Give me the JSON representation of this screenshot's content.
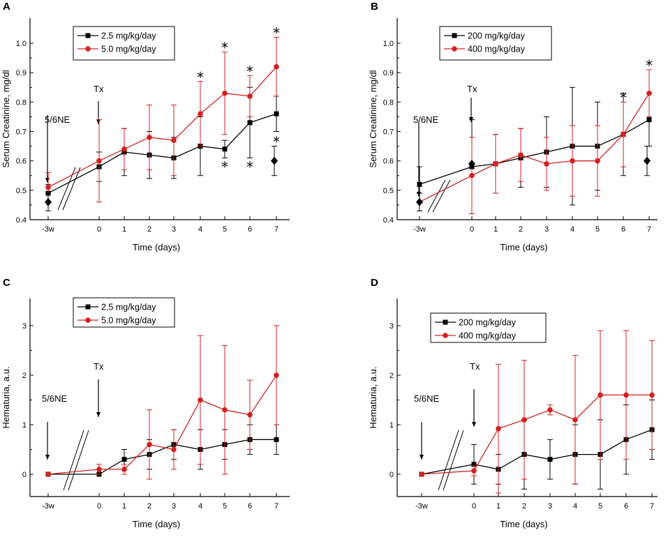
{
  "chart_data": [
    {
      "panel": "A",
      "type": "line",
      "xlabel": "Time (days)",
      "ylabel": "Serum Creatinine, mg/dl",
      "ylim": [
        0.4,
        1.05
      ],
      "yticks": [
        "0.4",
        "0.5",
        "0.6",
        "0.7",
        "0.8",
        "0.9",
        "1.0"
      ],
      "xticks": [
        "-3w",
        "0",
        "1",
        "2",
        "3",
        "4",
        "5",
        "6",
        "7"
      ],
      "x": [
        -3,
        0,
        1,
        2,
        3,
        4,
        5,
        6,
        7
      ],
      "series": [
        {
          "name": "2.5 mg/kg/day",
          "color": "#000000",
          "marker": "square",
          "values": [
            0.49,
            0.58,
            0.63,
            0.62,
            0.61,
            0.65,
            0.64,
            0.73,
            0.76
          ],
          "errors": [
            0.03,
            0.05,
            0.08,
            0.08,
            0.07,
            0.1,
            0.03,
            0.12,
            0.06
          ]
        },
        {
          "name": "5.0 mg/kg/day",
          "color": "#d42020",
          "marker": "circle",
          "values": [
            0.51,
            0.6,
            0.64,
            0.68,
            0.67,
            0.76,
            0.83,
            0.82,
            0.92
          ],
          "errors": [
            0.05,
            0.14,
            0.07,
            0.11,
            0.12,
            0.11,
            0.14,
            0.07,
            0.1
          ]
        }
      ],
      "control": {
        "x": [
          -3,
          7
        ],
        "values": [
          0.46,
          0.6
        ],
        "errors": [
          0.03,
          0.05
        ]
      },
      "stars_above": [
        4,
        5,
        6,
        7
      ],
      "stars_below": [
        5,
        6,
        7
      ],
      "annotations": {
        "nephrectomy": "5/6NE",
        "treatment": "Tx"
      },
      "star_symbol": "*"
    },
    {
      "panel": "B",
      "type": "line",
      "xlabel": "Time (days)",
      "ylabel": "Serum Creatinine, mg/dl",
      "ylim": [
        0.4,
        1.05
      ],
      "yticks": [
        "0.4",
        "0.5",
        "0.6",
        "0.7",
        "0.8",
        "0.9",
        "1.0"
      ],
      "xticks": [
        "-3w",
        "0",
        "1",
        "2",
        "3",
        "4",
        "5",
        "6",
        "7"
      ],
      "x": [
        -3,
        0,
        1,
        2,
        3,
        4,
        5,
        6,
        7
      ],
      "series": [
        {
          "name": "200 mg/kg/day",
          "color": "#000000",
          "marker": "square",
          "values": [
            0.52,
            0.58,
            0.59,
            0.61,
            0.63,
            0.65,
            0.65,
            0.69,
            0.74
          ],
          "errors": [
            0.06,
            0.16,
            0.1,
            0.1,
            0.12,
            0.2,
            0.15,
            0.14,
            0.09
          ]
        },
        {
          "name": "400 mg/kg/day",
          "color": "#d42020",
          "marker": "circle",
          "values": [
            0.46,
            0.55,
            0.59,
            0.62,
            0.59,
            0.6,
            0.6,
            0.69,
            0.83
          ],
          "errors": [
            0.03,
            0.13,
            0.1,
            0.09,
            0.09,
            0.12,
            0.12,
            0.11,
            0.08
          ]
        }
      ],
      "control": {
        "x": [
          -3,
          0,
          7
        ],
        "values": [
          0.46,
          0.59,
          0.6
        ],
        "errors": [
          0.03,
          0.0,
          0.05
        ]
      },
      "stars_above": [
        6,
        7
      ],
      "stars_below": [],
      "annotations": {
        "nephrectomy": "5/6NE",
        "treatment": "Tx"
      },
      "star_symbol": "*"
    },
    {
      "panel": "C",
      "type": "line",
      "xlabel": "Time (days)",
      "ylabel": "Hematuria, a.u.",
      "ylim": [
        -0.4,
        3.5
      ],
      "yticks": [
        "0",
        "1",
        "2",
        "3"
      ],
      "xticks": [
        "-3w",
        "0",
        "1",
        "2",
        "3",
        "4",
        "5",
        "6",
        "7"
      ],
      "x": [
        -3,
        0,
        1,
        2,
        3,
        4,
        5,
        6,
        7
      ],
      "series": [
        {
          "name": "2.5 mg/kg/day",
          "color": "#000000",
          "marker": "square",
          "values": [
            0,
            0,
            0.3,
            0.4,
            0.6,
            0.5,
            0.6,
            0.7,
            0.7
          ],
          "errors": [
            0,
            0,
            0.2,
            0.3,
            0.3,
            0.4,
            0.3,
            0.3,
            0.3
          ]
        },
        {
          "name": "5.0 mg/kg/day",
          "color": "#d42020",
          "marker": "circle",
          "values": [
            0,
            0.1,
            0.1,
            0.6,
            0.5,
            1.5,
            1.3,
            1.2,
            2.0
          ],
          "errors": [
            0,
            0.1,
            0.1,
            0.7,
            0.4,
            1.3,
            1.3,
            0.7,
            1.0
          ]
        }
      ],
      "control": null,
      "stars_above": [],
      "stars_below": [],
      "annotations": {
        "nephrectomy": "5/6NE",
        "treatment": "Tx"
      }
    },
    {
      "panel": "D",
      "type": "line",
      "xlabel": "Time (days)",
      "ylabel": "Hematuria, a.u.",
      "ylim": [
        -0.4,
        3.5
      ],
      "yticks": [
        "0",
        "1",
        "2",
        "3"
      ],
      "xticks": [
        "-3w",
        "0",
        "1",
        "2",
        "3",
        "4",
        "5",
        "6",
        "7"
      ],
      "x": [
        -3,
        0,
        1,
        2,
        3,
        4,
        5,
        6,
        7
      ],
      "series": [
        {
          "name": "200 mg/kg/day",
          "color": "#000000",
          "marker": "square",
          "values": [
            0,
            0.2,
            0.1,
            0.4,
            0.3,
            0.4,
            0.4,
            0.7,
            0.9
          ],
          "errors": [
            0,
            0.4,
            0.3,
            0.7,
            0.4,
            0.6,
            0.7,
            0.7,
            0.6
          ]
        },
        {
          "name": "400 mg/kg/day",
          "color": "#d42020",
          "marker": "circle",
          "values": [
            0,
            0.07,
            0.92,
            1.1,
            1.3,
            1.1,
            1.6,
            1.6,
            1.6
          ],
          "errors": [
            0,
            0.1,
            1.3,
            1.2,
            0.1,
            1.3,
            1.3,
            1.3,
            1.1
          ]
        }
      ],
      "control": null,
      "stars_above": [],
      "stars_below": [],
      "annotations": {
        "nephrectomy": "5/6NE",
        "treatment": "Tx"
      }
    }
  ]
}
